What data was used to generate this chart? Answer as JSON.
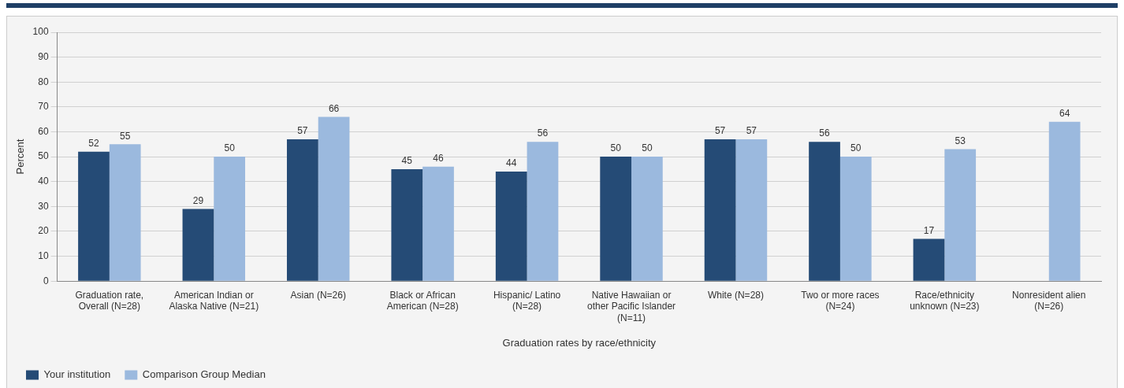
{
  "chart_data": {
    "type": "bar",
    "xlabel": "Graduation rates by race/ethnicity",
    "ylabel": "Percent",
    "categories": [
      "Graduation rate, Overall (N=28)",
      "American Indian or Alaska Native (N=21)",
      "Asian (N=26)",
      "Black or African American (N=28)",
      "Hispanic/ Latino (N=28)",
      "Native Hawaiian or other Pacific Islander (N=11)",
      "White (N=28)",
      "Two or more races (N=24)",
      "Race/ethnicity unknown (N=23)",
      "Nonresident alien (N=26)"
    ],
    "series": [
      {
        "name": "Your institution",
        "color": "#254b76",
        "values": [
          52,
          29,
          57,
          45,
          44,
          50,
          57,
          56,
          17,
          null
        ]
      },
      {
        "name": "Comparison Group Median",
        "color": "#9bb9de",
        "values": [
          55,
          50,
          66,
          46,
          56,
          50,
          57,
          50,
          53,
          64
        ]
      }
    ],
    "ylim": [
      0,
      100
    ],
    "yticks": [
      0,
      10,
      20,
      30,
      40,
      50,
      60,
      70,
      80,
      90,
      100
    ],
    "grid": "y",
    "legend": "bottom left",
    "data_labels": true
  }
}
